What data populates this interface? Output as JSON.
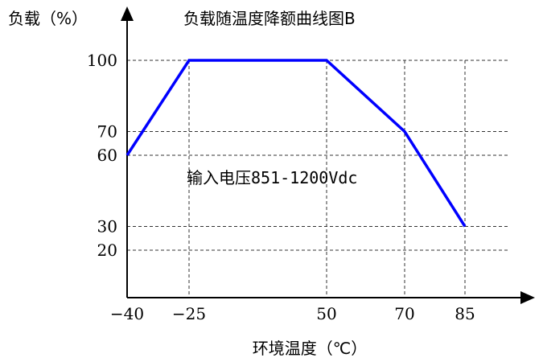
{
  "chart_data": {
    "type": "line",
    "title": "负载随温度降额曲线图B",
    "xlabel": "环境温度（℃）",
    "ylabel": "负载（%）",
    "annotation": "输入电压851-1200Vdc",
    "x_ticks": [
      -40,
      -25,
      50,
      70,
      85
    ],
    "y_ticks": [
      20,
      30,
      60,
      70,
      100
    ],
    "xlim": [
      -40,
      85
    ],
    "ylim": [
      0,
      100
    ],
    "grid": "dashed",
    "series": [
      {
        "color": "#0000ff",
        "x": [
          -40,
          -25,
          50,
          70,
          85
        ],
        "y": [
          60,
          100,
          100,
          70,
          30
        ]
      }
    ]
  }
}
